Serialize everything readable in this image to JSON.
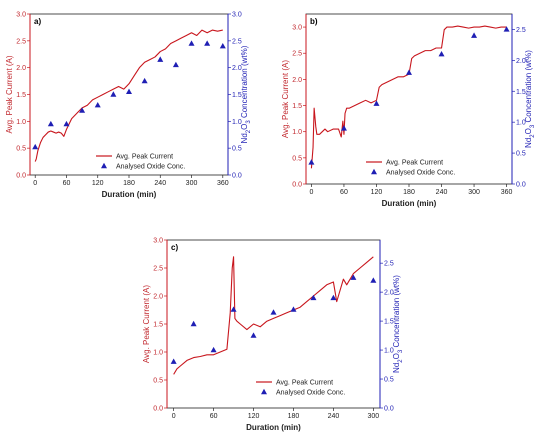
{
  "chart_data": [
    {
      "panel": "a)",
      "type": "line",
      "xlabel": "Duration (min)",
      "ylabel_left": "Avg. Peak Current (A)",
      "ylabel_right_parts": [
        "Nd",
        "2",
        "O",
        "3",
        " Concentration (wt%)"
      ],
      "xlim": [
        -10,
        370
      ],
      "xticks": [
        0,
        60,
        120,
        180,
        240,
        300,
        360
      ],
      "ylim_left": [
        0,
        3.0
      ],
      "yticks_left": [
        "0.0",
        "0.5",
        "1.0",
        "1.5",
        "2.0",
        "2.5",
        "3.0"
      ],
      "ylim_right": [
        0,
        3.0
      ],
      "yticks_right": [
        "0.0",
        "0.5",
        "1.0",
        "1.5",
        "2.0",
        "2.5",
        "3.0"
      ],
      "colors": {
        "current": "#c8161d",
        "oxide": "#1f1fb4"
      },
      "series": [
        {
          "name": "Avg. Peak Current",
          "x": [
            0,
            2,
            5,
            10,
            15,
            20,
            25,
            30,
            35,
            40,
            45,
            50,
            55,
            60,
            65,
            70,
            80,
            90,
            100,
            110,
            120,
            130,
            140,
            150,
            160,
            170,
            180,
            190,
            200,
            210,
            220,
            230,
            240,
            250,
            260,
            270,
            280,
            290,
            300,
            310,
            320,
            330,
            340,
            350,
            360
          ],
          "values": [
            0.25,
            0.3,
            0.45,
            0.6,
            0.7,
            0.75,
            0.8,
            0.82,
            0.8,
            0.78,
            0.8,
            0.78,
            0.72,
            0.85,
            0.95,
            1.05,
            1.15,
            1.25,
            1.3,
            1.4,
            1.45,
            1.5,
            1.55,
            1.6,
            1.65,
            1.6,
            1.7,
            1.85,
            2.0,
            2.1,
            2.15,
            2.2,
            2.3,
            2.35,
            2.45,
            2.5,
            2.55,
            2.6,
            2.65,
            2.6,
            2.7,
            2.65,
            2.7,
            2.68,
            2.7
          ]
        },
        {
          "name": "Analysed Oxide Conc.",
          "x": [
            0,
            30,
            60,
            90,
            120,
            150,
            180,
            210,
            240,
            270,
            300,
            330,
            360
          ],
          "values": [
            0.52,
            0.95,
            0.95,
            1.2,
            1.3,
            1.5,
            1.55,
            1.75,
            2.15,
            2.05,
            2.45,
            2.45,
            2.4
          ]
        }
      ]
    },
    {
      "panel": "b)",
      "type": "line",
      "xlabel": "Duration (min)",
      "ylabel_left": "Avg. Peak Current (A)",
      "ylabel_right_parts": [
        "Nd",
        "2",
        "O",
        "3",
        " Concentration (wt%)"
      ],
      "xlim": [
        -10,
        370
      ],
      "xticks": [
        0,
        60,
        120,
        180,
        240,
        300,
        360
      ],
      "ylim_left": [
        0,
        3.25
      ],
      "yticks_left": [
        "0.0",
        "0.5",
        "1.0",
        "1.5",
        "2.0",
        "2.5",
        "3.0"
      ],
      "ylim_right": [
        0,
        2.75
      ],
      "yticks_right": [
        "0.0",
        "0.5",
        "1.0",
        "1.5",
        "2.0",
        "2.5"
      ],
      "colors": {
        "current": "#c8161d",
        "oxide": "#1f1fb4"
      },
      "series": [
        {
          "name": "Avg. Peak Current",
          "x": [
            0,
            3,
            5,
            8,
            10,
            15,
            20,
            25,
            30,
            40,
            50,
            55,
            58,
            60,
            62,
            65,
            70,
            80,
            90,
            100,
            110,
            120,
            125,
            130,
            140,
            150,
            160,
            170,
            180,
            185,
            190,
            200,
            210,
            220,
            230,
            240,
            245,
            250,
            260,
            270,
            280,
            290,
            300,
            310,
            320,
            330,
            340,
            350,
            360
          ],
          "values": [
            0.3,
            0.7,
            1.45,
            1.1,
            0.95,
            0.95,
            1.0,
            1.05,
            1.0,
            1.05,
            1.05,
            0.9,
            1.2,
            0.95,
            1.35,
            1.45,
            1.45,
            1.5,
            1.55,
            1.6,
            1.55,
            1.6,
            1.85,
            1.9,
            1.95,
            2.0,
            2.05,
            2.05,
            2.1,
            2.4,
            2.45,
            2.5,
            2.55,
            2.55,
            2.6,
            2.6,
            2.95,
            3.0,
            3.0,
            3.02,
            3.0,
            2.98,
            3.0,
            3.0,
            3.02,
            3.0,
            2.98,
            3.0,
            3.0
          ]
        },
        {
          "name": "Analysed Oxide Conc.",
          "x": [
            0,
            60,
            120,
            180,
            240,
            300,
            360
          ],
          "values": [
            0.35,
            0.9,
            1.3,
            1.8,
            2.1,
            2.4,
            2.5
          ]
        }
      ]
    },
    {
      "panel": "c)",
      "type": "line",
      "xlabel": "Duration (min)",
      "ylabel_left": "Avg. Peak Current (A)",
      "ylabel_right_parts": [
        "Nd",
        "2",
        "O",
        "3",
        " Concentration (wt%)"
      ],
      "xlim": [
        -10,
        310
      ],
      "xticks": [
        0,
        60,
        120,
        180,
        240,
        300
      ],
      "ylim_left": [
        0,
        3.0
      ],
      "yticks_left": [
        "0.0",
        "0.5",
        "1.0",
        "1.5",
        "2.0",
        "2.5",
        "3.0"
      ],
      "ylim_right": [
        0,
        2.9
      ],
      "yticks_right": [
        "0.0",
        "0.5",
        "1.0",
        "1.5",
        "2.0",
        "2.5"
      ],
      "colors": {
        "current": "#c8161d",
        "oxide": "#1f1fb4"
      },
      "series": [
        {
          "name": "Avg. Peak Current",
          "x": [
            0,
            5,
            10,
            20,
            30,
            40,
            50,
            60,
            70,
            80,
            85,
            88,
            90,
            92,
            95,
            100,
            110,
            120,
            130,
            140,
            150,
            160,
            170,
            180,
            190,
            200,
            210,
            220,
            230,
            240,
            245,
            250,
            255,
            260,
            270,
            280,
            290,
            300
          ],
          "values": [
            0.6,
            0.7,
            0.75,
            0.85,
            0.9,
            0.92,
            0.95,
            0.95,
            1.0,
            1.05,
            1.7,
            2.5,
            2.7,
            1.6,
            1.55,
            1.5,
            1.4,
            1.5,
            1.45,
            1.55,
            1.6,
            1.65,
            1.7,
            1.75,
            1.8,
            1.9,
            2.0,
            2.1,
            2.2,
            2.25,
            1.9,
            2.1,
            2.3,
            2.2,
            2.4,
            2.5,
            2.6,
            2.7
          ]
        },
        {
          "name": "Analysed Oxide Conc.",
          "x": [
            0,
            30,
            60,
            90,
            120,
            150,
            180,
            210,
            240,
            270,
            300
          ],
          "values": [
            0.8,
            1.45,
            1.0,
            1.7,
            1.25,
            1.65,
            1.7,
            1.9,
            1.9,
            2.25,
            2.2
          ]
        }
      ]
    }
  ]
}
